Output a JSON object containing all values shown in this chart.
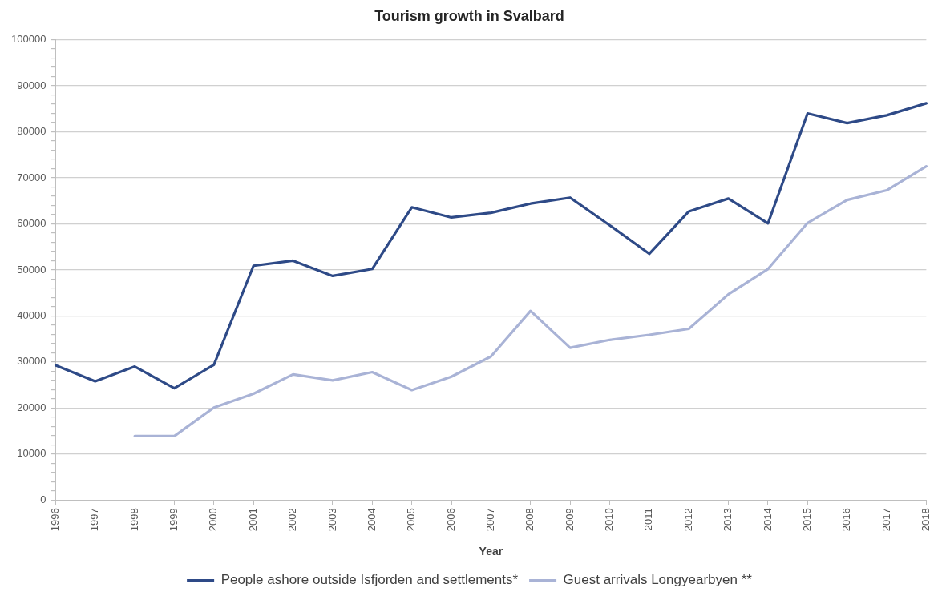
{
  "chart_data": {
    "type": "line",
    "title": "Tourism growth in Svalbard",
    "xlabel": "Year",
    "categories": [
      "1996",
      "1997",
      "1998",
      "1999",
      "2000",
      "2001",
      "2002",
      "2003",
      "2004",
      "2005",
      "2006",
      "2007",
      "2008",
      "2009",
      "2010",
      "2011",
      "2012",
      "2013",
      "2014",
      "2015",
      "2016",
      "2017",
      "2018"
    ],
    "series": [
      {
        "name": "People ashore outside Isfjorden and settlements*",
        "color": "#2e4a87",
        "values": [
          29300,
          25800,
          29000,
          24300,
          29400,
          50900,
          52000,
          48700,
          50200,
          63600,
          61400,
          62400,
          64400,
          65700,
          59700,
          53500,
          62700,
          65500,
          60100,
          84000,
          81900,
          83600,
          86200
        ]
      },
      {
        "name": "Guest arrivals Longyearbyen **",
        "color": "#a9b3d6",
        "values": [
          null,
          null,
          13900,
          13900,
          20100,
          23100,
          27300,
          26000,
          27800,
          23900,
          26800,
          31200,
          41100,
          33100,
          34800,
          35900,
          37200,
          44700,
          50200,
          60200,
          65200,
          67300,
          72500
        ]
      }
    ],
    "ylim": [
      0,
      100000
    ],
    "yticks": [
      0,
      {
        "value": 2000,
        "label": null
      },
      {
        "value": 4000,
        "label": null
      },
      {
        "value": 6000,
        "label": null
      },
      {
        "value": 8000,
        "label": null
      },
      10000,
      {
        "value": 12000,
        "label": null
      },
      {
        "value": 14000,
        "label": null
      },
      {
        "value": 16000,
        "label": null
      },
      {
        "value": 18000,
        "label": null
      },
      20000,
      {
        "value": 22000,
        "label": null
      },
      {
        "value": 24000,
        "label": null
      },
      {
        "value": 26000,
        "label": null
      },
      {
        "value": 28000,
        "label": null
      },
      30000,
      {
        "value": 32000,
        "label": null
      },
      {
        "value": 34000,
        "label": null
      },
      {
        "value": 36000,
        "label": null
      },
      {
        "value": 38000,
        "label": null
      },
      40000,
      {
        "value": 42000,
        "label": null
      },
      {
        "value": 44000,
        "label": null
      },
      {
        "value": 46000,
        "label": null
      },
      {
        "value": 48000,
        "label": null
      },
      50000,
      {
        "value": 52000,
        "label": null
      },
      {
        "value": 54000,
        "label": null
      },
      {
        "value": 56000,
        "label": null
      },
      {
        "value": 58000,
        "label": null
      },
      60000,
      {
        "value": 62000,
        "label": null
      },
      {
        "value": 64000,
        "label": null
      },
      {
        "value": 66000,
        "label": null
      },
      {
        "value": 68000,
        "label": null
      },
      70000,
      {
        "value": 72000,
        "label": null
      },
      {
        "value": 74000,
        "label": null
      },
      {
        "value": 76000,
        "label": null
      },
      {
        "value": 78000,
        "label": null
      },
      80000,
      {
        "value": 82000,
        "label": null
      },
      {
        "value": 84000,
        "label": null
      },
      {
        "value": 86000,
        "label": null
      },
      {
        "value": 88000,
        "label": null
      },
      90000,
      {
        "value": 92000,
        "label": null
      },
      {
        "value": 94000,
        "label": null
      },
      {
        "value": 96000,
        "label": null
      },
      {
        "value": 98000,
        "label": null
      },
      100000
    ],
    "grid": "y",
    "legend": "bottom",
    "marker": "none",
    "line_style": "solid"
  }
}
